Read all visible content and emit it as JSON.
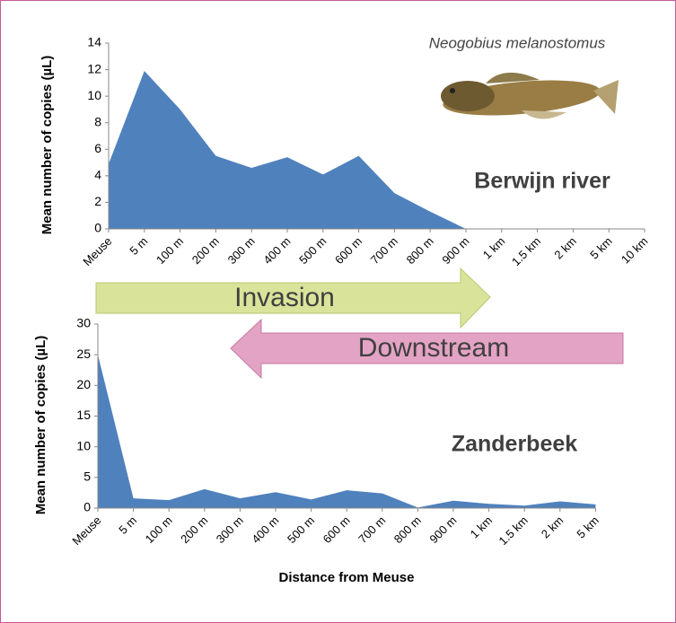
{
  "chart_data": [
    {
      "type": "area",
      "ylabel": "Mean number of copies (µL)",
      "annotation": "Berwijn river",
      "color": "#4f81bd",
      "categories": [
        "Meuse",
        "5 m",
        "100 m",
        "200 m",
        "300 m",
        "400 m",
        "500 m",
        "600 m",
        "700 m",
        "800 m",
        "900 m",
        "1 km",
        "1.5 km",
        "2 km",
        "5 km",
        "10 km"
      ],
      "values": [
        4.9,
        11.9,
        9.0,
        5.5,
        4.6,
        5.4,
        4.1,
        5.5,
        2.7,
        1.3,
        0,
        null,
        null,
        null,
        null,
        null
      ],
      "ylim": [
        0,
        14
      ],
      "yticks": [
        0,
        2,
        4,
        6,
        8,
        10,
        12,
        14
      ]
    },
    {
      "type": "area",
      "ylabel": "Mean number of copies (µL)",
      "xlabel": "Distance from Meuse",
      "annotation": "Zanderbeek",
      "color": "#4f81bd",
      "categories": [
        "Meuse",
        "5 m",
        "100 m",
        "200 m",
        "300 m",
        "400 m",
        "500 m",
        "600 m",
        "700 m",
        "800 m",
        "900 m",
        "1 km",
        "1.5 km",
        "2 km",
        "5 km"
      ],
      "values": [
        25,
        1.6,
        1.3,
        3.1,
        1.6,
        2.6,
        1.4,
        2.9,
        2.4,
        0.1,
        1.2,
        0.7,
        0.4,
        1.1,
        0.6
      ],
      "ylim": [
        0,
        30
      ],
      "yticks": [
        0,
        5,
        10,
        15,
        20,
        25,
        30
      ]
    }
  ],
  "species": "Neogobius melanostomus",
  "arrows": [
    "Invasion",
    "Downstream"
  ]
}
